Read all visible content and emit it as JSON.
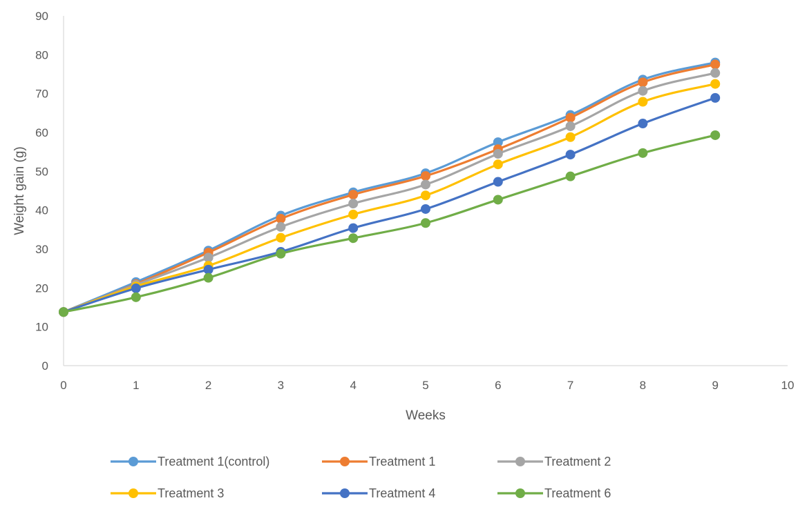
{
  "chart_data": {
    "type": "line",
    "title": "",
    "xlabel": "Weeks",
    "ylabel": "Weight gain (g)",
    "xlim": [
      0,
      10
    ],
    "ylim": [
      0,
      90
    ],
    "xticks": [
      0,
      1,
      2,
      3,
      4,
      5,
      6,
      7,
      8,
      9,
      10
    ],
    "yticks": [
      0,
      10,
      20,
      30,
      40,
      50,
      60,
      70,
      80,
      90
    ],
    "grid": false,
    "legend_position": "bottom",
    "x": [
      0,
      1,
      2,
      3,
      4,
      5,
      6,
      7,
      8,
      9
    ],
    "series": [
      {
        "name": "Treatment 1(control)",
        "color": "#5B9BD5",
        "values": [
          13.8,
          21.5,
          29.6,
          38.6,
          44.6,
          49.5,
          57.5,
          64.5,
          73.6,
          78.0
        ]
      },
      {
        "name": "Treatment 1",
        "color": "#ED7D31",
        "values": [
          13.8,
          21.0,
          29.1,
          37.8,
          44.0,
          48.8,
          55.7,
          63.8,
          72.9,
          77.5
        ]
      },
      {
        "name": "Treatment 2",
        "color": "#A5A5A5",
        "values": [
          13.8,
          20.8,
          27.8,
          35.7,
          41.7,
          46.6,
          54.5,
          61.6,
          70.7,
          75.3
        ]
      },
      {
        "name": "Treatment 3",
        "color": "#FFC000",
        "values": [
          13.8,
          20.4,
          25.7,
          32.9,
          38.9,
          43.8,
          51.8,
          58.8,
          67.9,
          72.5
        ]
      },
      {
        "name": "Treatment 4",
        "color": "#4472C4",
        "values": [
          13.8,
          19.9,
          24.7,
          29.3,
          35.4,
          40.3,
          47.3,
          54.3,
          62.3,
          68.9
        ]
      },
      {
        "name": "Treatment 6",
        "color": "#70AD47",
        "values": [
          13.8,
          17.6,
          22.6,
          28.8,
          32.8,
          36.7,
          42.7,
          48.7,
          54.7,
          59.3
        ]
      }
    ]
  }
}
